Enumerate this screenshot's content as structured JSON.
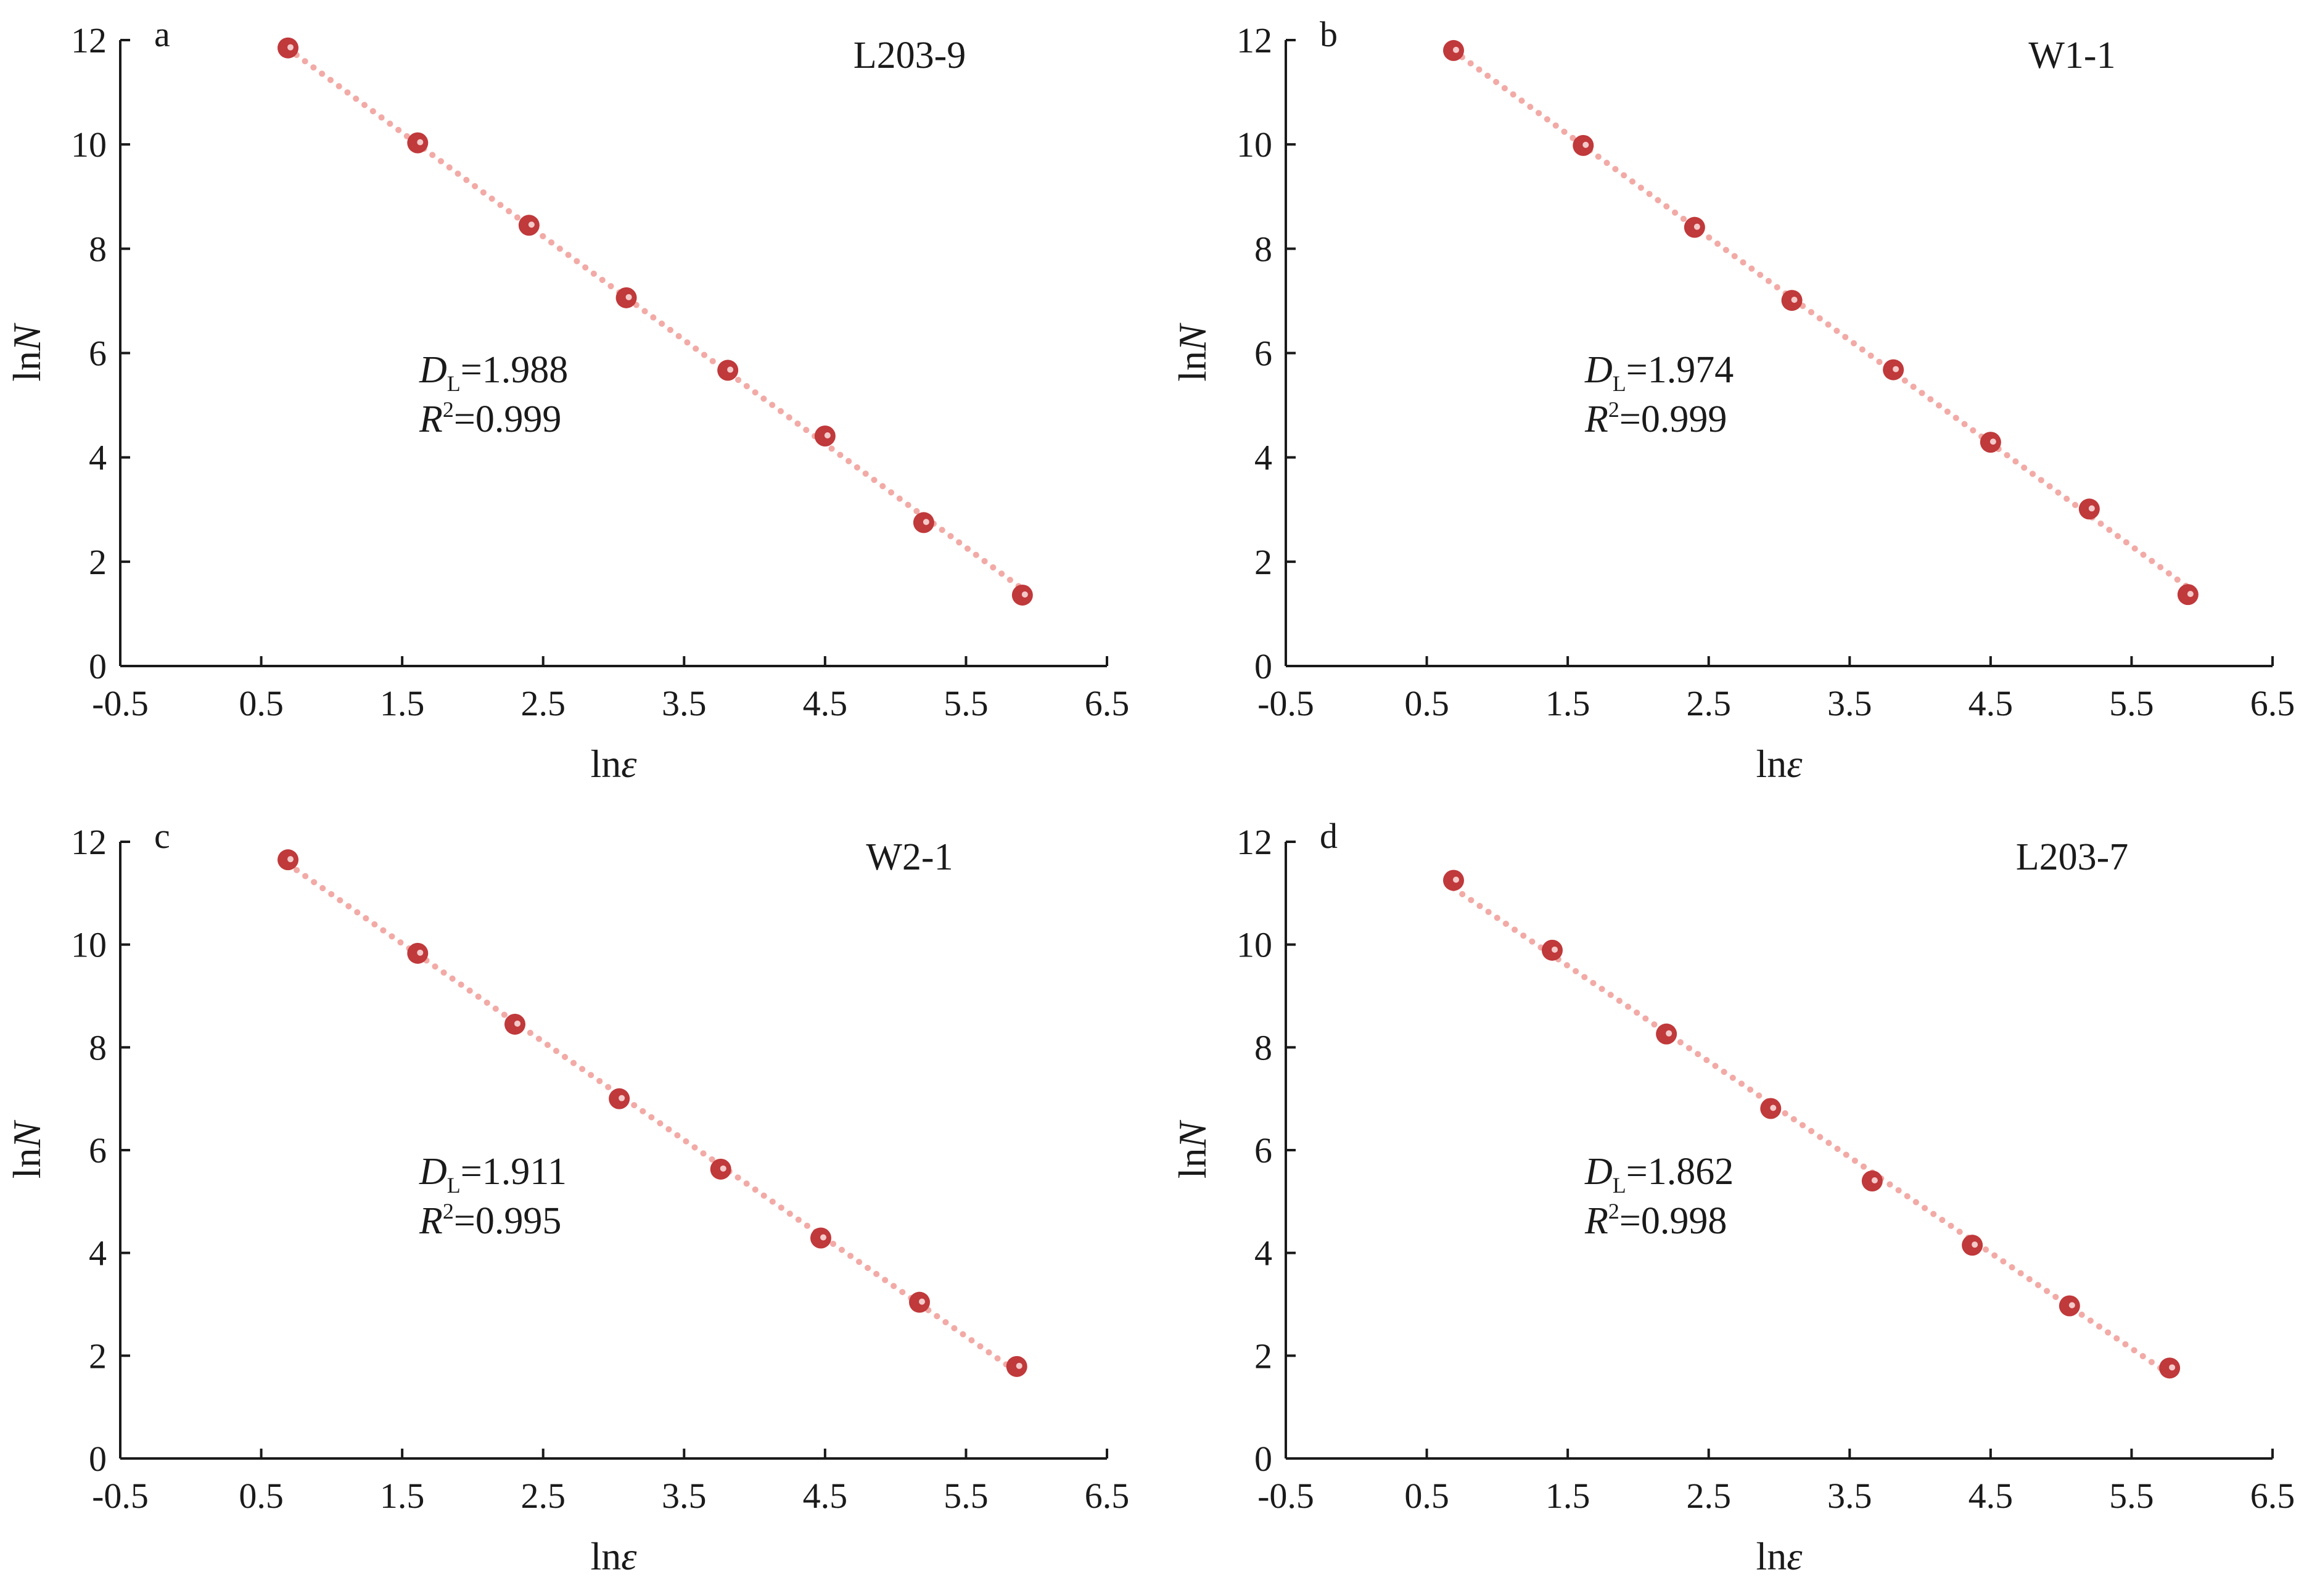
{
  "chart_data": [
    {
      "type": "scatter",
      "panel": "a",
      "sample": "L203-9",
      "xlabel": "lnε",
      "ylabel": "lnN",
      "xlim": [
        -0.5,
        6.5
      ],
      "ylim": [
        0,
        12
      ],
      "xticks": [
        "-0.5",
        "0.5",
        "1.5",
        "2.5",
        "3.5",
        "4.5",
        "5.5",
        "6.5"
      ],
      "yticks": [
        "0",
        "2",
        "4",
        "6",
        "8",
        "10",
        "12"
      ],
      "stats": {
        "D": "D",
        "D_sub": "L",
        "D_value": "=1.988",
        "R": "R",
        "R_sup": "2",
        "R_value": "=0.999"
      },
      "x": [
        0.69,
        1.61,
        2.4,
        3.09,
        3.81,
        4.5,
        5.2,
        5.9
      ],
      "y": [
        11.85,
        10.03,
        8.45,
        7.06,
        5.67,
        4.41,
        2.75,
        1.36
      ],
      "fit": {
        "slope": -1.988,
        "x_range": [
          0.69,
          5.9
        ]
      }
    },
    {
      "type": "scatter",
      "panel": "b",
      "sample": "W1-1",
      "xlabel": "lnε",
      "ylabel": "lnN",
      "xlim": [
        -0.5,
        6.5
      ],
      "ylim": [
        0,
        12
      ],
      "xticks": [
        "-0.5",
        "0.5",
        "1.5",
        "2.5",
        "3.5",
        "4.5",
        "5.5",
        "6.5"
      ],
      "yticks": [
        "0",
        "2",
        "4",
        "6",
        "8",
        "10",
        "12"
      ],
      "stats": {
        "D": "D",
        "D_sub": "L",
        "D_value": "=1.974",
        "R": "R",
        "R_sup": "2",
        "R_value": "=0.999"
      },
      "x": [
        0.69,
        1.61,
        2.4,
        3.09,
        3.81,
        4.5,
        5.2,
        5.9
      ],
      "y": [
        11.8,
        9.98,
        8.41,
        7.01,
        5.68,
        4.29,
        3.01,
        1.37
      ],
      "fit": {
        "slope": -1.974,
        "x_range": [
          0.69,
          5.9
        ]
      }
    },
    {
      "type": "scatter",
      "panel": "c",
      "sample": "W2-1",
      "xlabel": "lnε",
      "ylabel": "lnN",
      "xlim": [
        -0.5,
        6.5
      ],
      "ylim": [
        0,
        12
      ],
      "xticks": [
        "-0.5",
        "0.5",
        "1.5",
        "2.5",
        "3.5",
        "4.5",
        "5.5",
        "6.5"
      ],
      "yticks": [
        "0",
        "2",
        "4",
        "6",
        "8",
        "10",
        "12"
      ],
      "stats": {
        "D": "D",
        "D_sub": "L",
        "D_value": "=1.911",
        "R": "R",
        "R_sup": "2",
        "R_value": "=0.995"
      },
      "x": [
        0.69,
        1.61,
        2.3,
        3.04,
        3.76,
        4.47,
        5.17,
        5.86
      ],
      "y": [
        11.65,
        9.83,
        8.45,
        7.0,
        5.63,
        4.29,
        3.04,
        1.79
      ],
      "fit": {
        "slope": -1.911,
        "x_range": [
          0.69,
          5.86
        ]
      }
    },
    {
      "type": "scatter",
      "panel": "d",
      "sample": "L203-7",
      "xlabel": "lnε",
      "ylabel": "lnN",
      "xlim": [
        -0.5,
        6.5
      ],
      "ylim": [
        0,
        12
      ],
      "xticks": [
        "-0.5",
        "0.5",
        "1.5",
        "2.5",
        "3.5",
        "4.5",
        "5.5",
        "6.5"
      ],
      "yticks": [
        "0",
        "2",
        "4",
        "6",
        "8",
        "10",
        "12"
      ],
      "stats": {
        "D": "D",
        "D_sub": "L",
        "D_value": "=1.862",
        "R": "R",
        "R_sup": "2",
        "R_value": "=0.998"
      },
      "x": [
        0.69,
        1.39,
        2.2,
        2.94,
        3.66,
        4.37,
        5.06,
        5.77
      ],
      "y": [
        11.25,
        9.89,
        8.26,
        6.81,
        5.4,
        4.15,
        2.97,
        1.76
      ],
      "fit": {
        "slope": -1.862,
        "x_range": [
          0.69,
          5.77
        ]
      }
    }
  ],
  "colors": {
    "marker": "#c0393b",
    "marker_highlight": "#f3c9c9",
    "fit_line": "#f2aaa6",
    "axis": "#1a1a1a"
  }
}
